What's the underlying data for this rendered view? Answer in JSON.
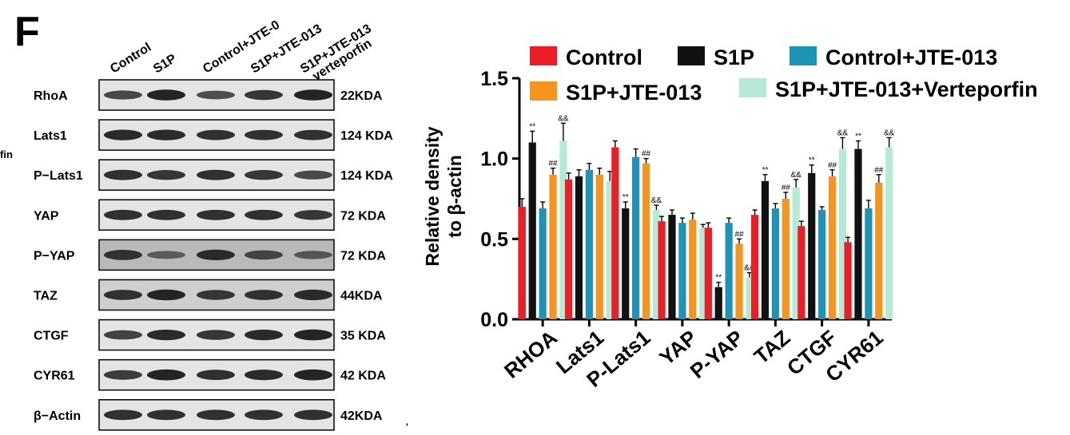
{
  "panel_label": "F",
  "cut_text": "fin",
  "footer_mark": "'",
  "blot": {
    "lane_labels": [
      "Control",
      "S1P",
      "Control+JTE-013",
      "S1P+JTE-013",
      "S1P+JTE-013+verteporfin"
    ],
    "lane_label_lines": [
      [
        "Control"
      ],
      [
        "S1P"
      ],
      [
        "Control+JTE-0"
      ],
      [
        "S1P+JTE-013"
      ],
      [
        "S1P+JTE-013",
        "verteporfin"
      ]
    ],
    "rows": [
      {
        "protein": "RhoA",
        "size": "22KDA",
        "intensity": [
          0.65,
          0.95,
          0.6,
          0.8,
          0.95
        ],
        "background": "light"
      },
      {
        "protein": "Lats1",
        "size": "124 KDA",
        "intensity": [
          0.9,
          0.9,
          0.85,
          0.85,
          0.85
        ],
        "background": "light"
      },
      {
        "protein": "P−Lats1",
        "size": "124 KDA",
        "intensity": [
          0.85,
          0.8,
          0.85,
          0.8,
          0.65
        ],
        "background": "light"
      },
      {
        "protein": "YAP",
        "size": "72 KDA",
        "intensity": [
          0.85,
          0.85,
          0.85,
          0.85,
          0.8
        ],
        "background": "light"
      },
      {
        "protein": "P−YAP",
        "size": "72 KDA",
        "intensity": [
          0.85,
          0.5,
          0.9,
          0.7,
          0.55
        ],
        "background": "dark"
      },
      {
        "protein": "TAZ",
        "size": "44KDA",
        "intensity": [
          0.85,
          0.95,
          0.8,
          0.85,
          0.9
        ],
        "background": "medium"
      },
      {
        "protein": "CTGF",
        "size": "35 KDA",
        "intensity": [
          0.7,
          0.9,
          0.8,
          0.9,
          0.95
        ],
        "background": "light"
      },
      {
        "protein": "CYR61",
        "size": "42 KDA",
        "intensity": [
          0.75,
          0.95,
          0.85,
          0.9,
          0.95
        ],
        "background": "light"
      },
      {
        "protein": "β−Actin",
        "size": "42KDA",
        "intensity": [
          0.85,
          0.85,
          0.85,
          0.85,
          0.85
        ],
        "background": "light"
      }
    ]
  },
  "chart_data": {
    "type": "bar",
    "title": "",
    "xlabel": "",
    "ylabel": "Relative density to β-actin",
    "ylabel_lines": [
      "Relative density",
      "to β-actin"
    ],
    "ylim": [
      0,
      1.5
    ],
    "yticks": [
      "0.0",
      "0.5",
      "1.0",
      "1.5"
    ],
    "categories": [
      "RHOA",
      "Lats1",
      "P-Lats1",
      "YAP",
      "P-YAP",
      "TAZ",
      "CTGF",
      "CYR61"
    ],
    "legend_position": "top",
    "series": [
      {
        "name": "Control",
        "color": "#ee1c25",
        "values": [
          0.7,
          0.87,
          1.07,
          0.61,
          0.57,
          0.65,
          0.58,
          0.48
        ],
        "errors": [
          0.05,
          0.04,
          0.04,
          0.03,
          0.03,
          0.03,
          0.03,
          0.03
        ],
        "marks": [
          "",
          "",
          "",
          "",
          "",
          "",
          "",
          ""
        ]
      },
      {
        "name": "S1P",
        "color": "#111111",
        "values": [
          1.1,
          0.89,
          0.69,
          0.65,
          0.2,
          0.86,
          0.91,
          1.06
        ],
        "errors": [
          0.07,
          0.04,
          0.04,
          0.03,
          0.03,
          0.04,
          0.05,
          0.05
        ],
        "marks": [
          "**",
          "",
          "**",
          "",
          "**",
          "**",
          "**",
          "**"
        ]
      },
      {
        "name": "Control+JTE-013",
        "color": "#1e93b8",
        "values": [
          0.69,
          0.93,
          1.01,
          0.6,
          0.6,
          0.69,
          0.68,
          0.69
        ],
        "errors": [
          0.04,
          0.04,
          0.05,
          0.03,
          0.03,
          0.03,
          0.02,
          0.05
        ],
        "marks": [
          "",
          "",
          "",
          "",
          "",
          "",
          "",
          ""
        ]
      },
      {
        "name": "S1P+JTE-013",
        "color": "#f7941d",
        "values": [
          0.9,
          0.9,
          0.97,
          0.62,
          0.47,
          0.75,
          0.89,
          0.85
        ],
        "errors": [
          0.04,
          0.04,
          0.03,
          0.04,
          0.03,
          0.04,
          0.04,
          0.05
        ],
        "marks": [
          "##",
          "",
          "##",
          "",
          "##",
          "##",
          "##",
          "##"
        ]
      },
      {
        "name": "S1P+JTE-013+Verteporfin",
        "color": "#b5ead7",
        "values": [
          1.11,
          0.86,
          0.68,
          0.57,
          0.26,
          0.82,
          1.06,
          1.07
        ],
        "errors": [
          0.11,
          0.06,
          0.03,
          0.02,
          0.03,
          0.05,
          0.07,
          0.06
        ],
        "marks": [
          "&&",
          "",
          "&&",
          "",
          "&&",
          "&&",
          "&&",
          "&&"
        ]
      }
    ]
  }
}
